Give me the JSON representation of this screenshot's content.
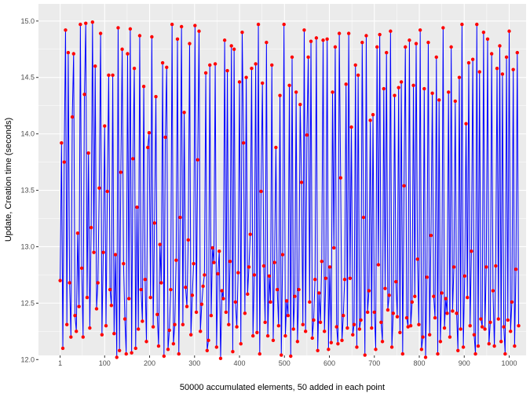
{
  "chart_data": {
    "type": "line",
    "title": "",
    "xlabel": "50000 accumulated elements, 50 added in each point",
    "ylabel": "Update, Creation time (seconds)",
    "xlim": [
      1,
      1000
    ],
    "ylim": [
      12.0,
      15.0
    ],
    "x_ticks": [
      1,
      100,
      200,
      300,
      400,
      500,
      600,
      700,
      800,
      900,
      1000
    ],
    "y_ticks": [
      "12.0",
      "12.5",
      "13.0",
      "13.5",
      "14.0",
      "14.5",
      "15.0"
    ],
    "grid": true,
    "background": "#ebebeb",
    "line_color": "#0000ff",
    "point_color": "#ff0000",
    "series": [
      {
        "x_start": 1,
        "x_step": 3,
        "values": [
          12.7,
          13.92,
          12.1,
          13.75,
          14.92,
          12.31,
          14.72,
          12.68,
          12.2,
          14.15,
          14.71,
          12.39,
          12.25,
          13.12,
          12.47,
          14.97,
          12.81,
          12.2,
          14.35,
          14.98,
          12.55,
          13.83,
          12.28,
          13.17,
          14.99,
          12.95,
          14.6,
          12.45,
          12.68,
          13.52,
          14.89,
          12.22,
          12.95,
          14.07,
          12.3,
          13.49,
          14.52,
          12.62,
          12.48,
          14.52,
          12.23,
          12.93,
          12.02,
          14.94,
          12.08,
          13.66,
          14.75,
          12.85,
          12.36,
          12.05,
          14.71,
          12.54,
          14.93,
          12.06,
          13.78,
          14.58,
          12.1,
          13.35,
          12.27,
          14.87,
          12.62,
          12.34,
          14.42,
          12.71,
          12.16,
          13.88,
          14.01,
          12.55,
          14.86,
          12.29,
          13.21,
          14.33,
          12.4,
          12.12,
          13.02,
          12.68,
          14.63,
          12.03,
          13.97,
          14.59,
          12.09,
          12.26,
          12.62,
          14.97,
          12.14,
          12.31,
          12.88,
          14.84,
          12.05,
          13.26,
          14.95,
          12.31,
          14.19,
          12.64,
          12.47,
          13.06,
          14.8,
          12.22,
          12.57,
          12.85,
          14.96,
          12.42,
          13.77,
          14.91,
          12.25,
          12.49,
          12.65,
          12.75,
          14.54,
          12.08,
          12.17,
          14.61,
          12.39,
          12.99,
          12.86,
          14.62,
          12.11,
          12.76,
          12.96,
          12.01,
          12.61,
          12.54,
          14.83,
          12.42,
          14.56,
          12.31,
          12.87,
          14.78,
          12.07,
          14.75,
          12.51,
          12.29,
          12.77,
          14.46,
          12.14,
          14.9,
          13.92,
          12.41,
          14.5,
          12.58,
          12.82,
          13.11,
          14.58,
          12.21,
          12.75,
          14.62,
          12.24,
          14.97,
          12.05,
          13.49,
          14.45,
          12.83,
          12.33,
          14.81,
          12.21,
          12.74,
          12.51,
          14.61,
          12.17,
          12.86,
          13.88,
          12.62,
          12.3,
          14.34,
          12.04,
          12.93,
          14.97,
          12.21,
          12.52,
          12.39,
          14.43,
          12.03,
          14.68,
          12.27,
          12.56,
          14.37,
          12.16,
          12.62,
          14.26,
          13.57,
          12.31,
          14.92,
          12.25,
          13.99,
          14.68,
          12.51,
          14.82,
          12.19,
          12.35,
          12.71,
          14.85,
          12.08,
          12.59,
          12.33,
          12.87,
          14.83,
          12.25,
          12.72,
          14.84,
          12.09,
          12.82,
          12.15,
          14.37,
          12.99,
          14.77,
          12.29,
          12.14,
          14.89,
          13.61,
          12.17,
          12.39,
          12.71,
          14.44,
          12.28,
          14.89,
          12.72,
          14.06,
          12.22,
          12.31,
          14.61,
          12.11,
          14.52,
          12.27,
          12.35,
          14.81,
          13.26,
          12.04,
          14.87,
          12.42,
          12.61,
          14.12,
          12.28,
          14.17,
          12.42,
          12.09,
          14.77,
          12.84,
          14.88,
          12.33,
          12.16,
          14.4,
          12.63,
          14.72,
          12.44,
          12.57,
          14.91,
          12.11,
          12.41,
          14.34,
          12.69,
          12.38,
          14.41,
          12.24,
          14.46,
          12.05,
          13.54,
          14.77,
          12.37,
          12.29,
          14.83,
          12.3,
          12.51,
          14.43,
          12.56,
          14.8,
          12.89,
          12.31,
          14.92,
          12.09,
          12.2,
          14.4,
          12.02,
          12.73,
          14.81,
          12.22,
          13.1,
          14.36,
          12.56,
          12.37,
          14.68,
          12.05,
          14.3,
          12.16,
          12.59,
          14.94,
          12.28,
          12.54,
          12.41,
          14.37,
          12.2,
          14.77,
          12.43,
          12.82,
          14.29,
          12.41,
          12.08,
          14.5,
          12.27,
          14.97,
          12.11,
          12.74,
          14.09,
          12.55,
          14.63,
          12.3,
          12.96,
          14.66,
          12.22,
          12.05,
          14.97,
          12.12,
          14.55,
          12.36,
          12.29,
          14.9,
          12.27,
          12.82,
          14.84,
          12.14,
          12.33,
          14.71,
          12.61,
          12.12,
          12.83,
          14.58,
          12.36,
          14.78,
          12.16,
          14.53,
          12.29,
          12.05,
          14.68,
          12.35,
          14.91,
          12.25,
          12.51,
          14.57,
          12.12,
          12.8,
          14.72,
          12.3
        ]
      }
    ]
  }
}
